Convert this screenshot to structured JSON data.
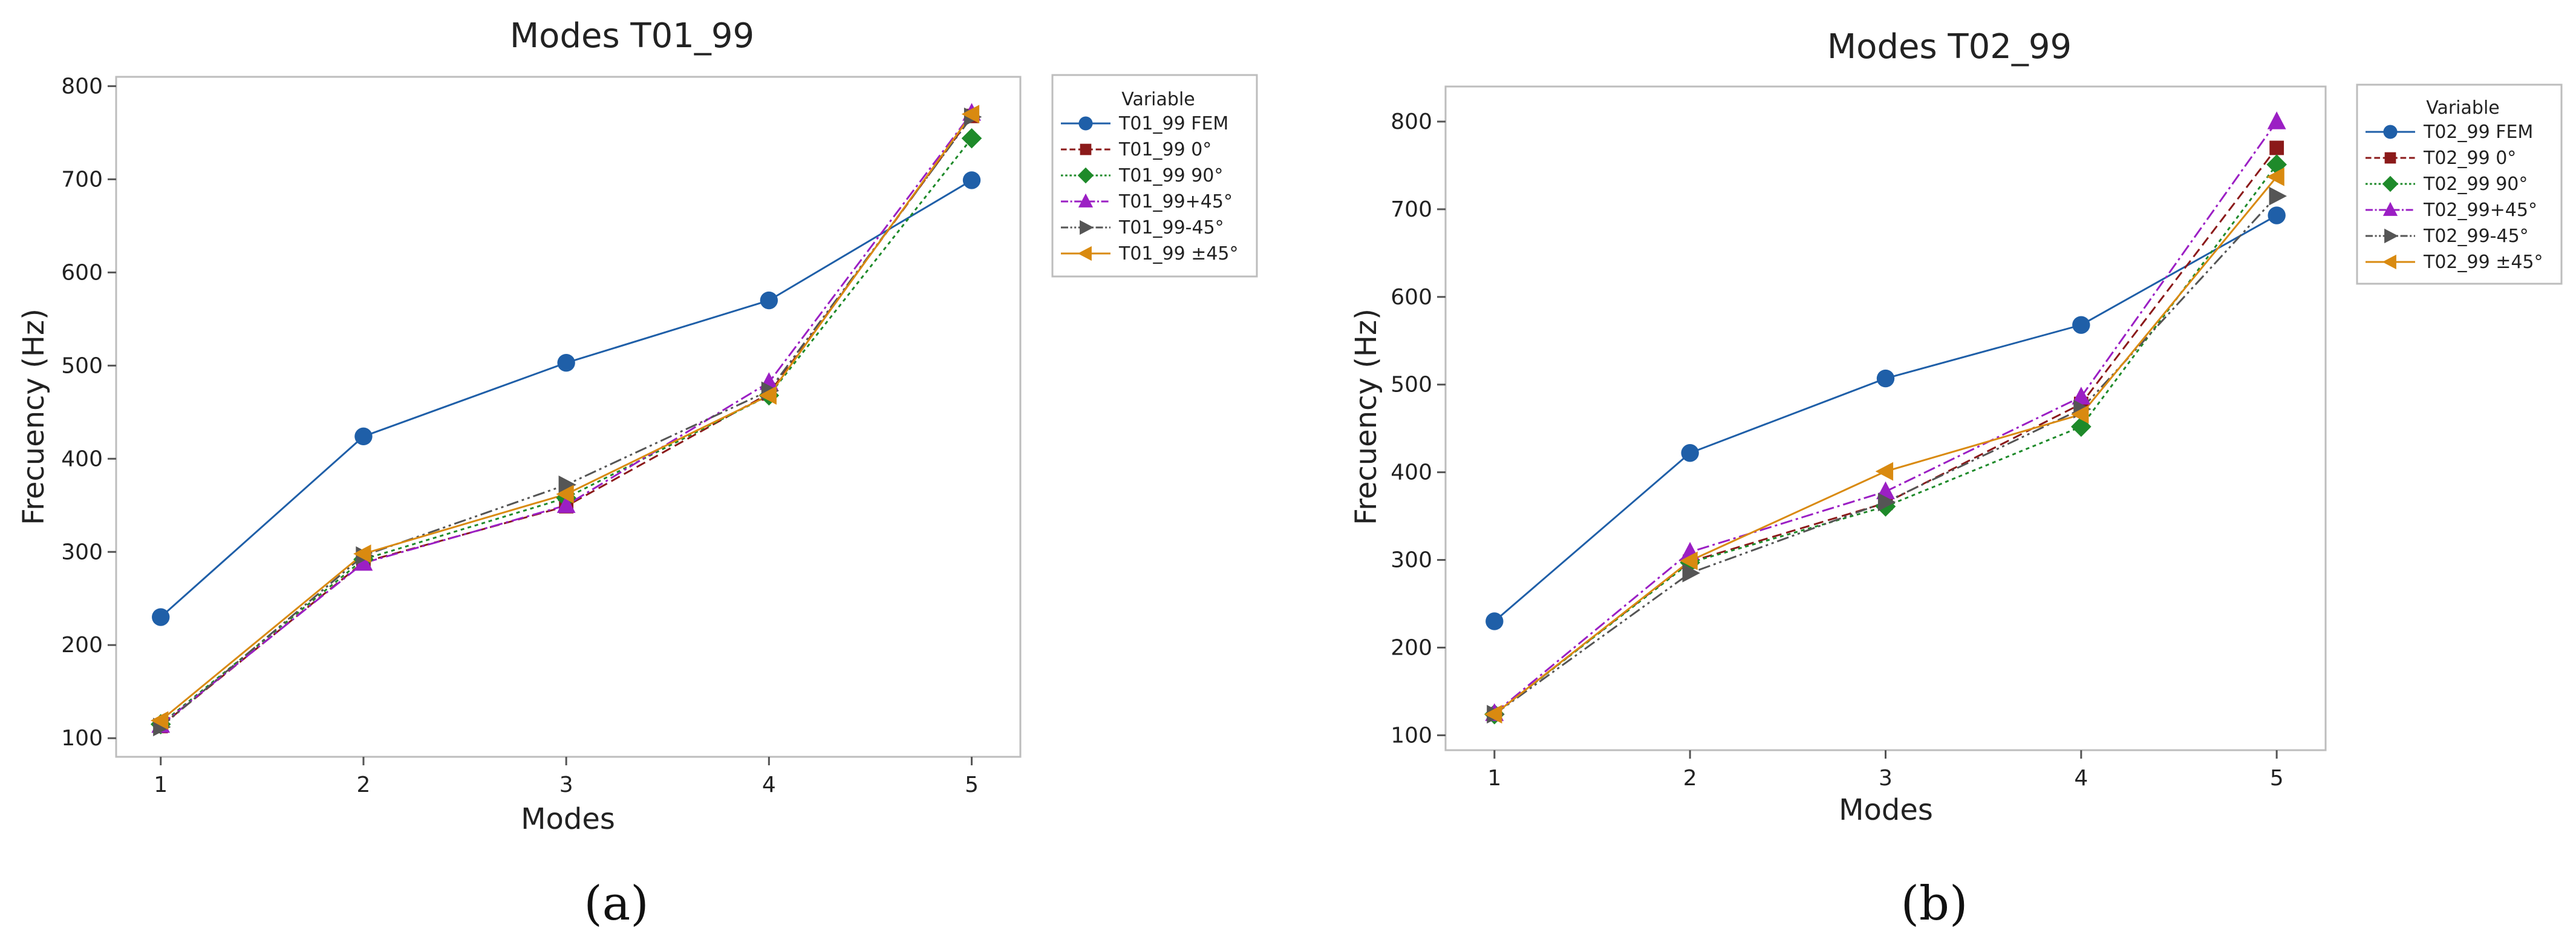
{
  "colors": {
    "FEM": "#1f5fa8",
    "deg0": "#8b1a1a",
    "deg90": "#1e8a2a",
    "p45": "#9b1fc4",
    "m45": "#555555",
    "pm45": "#d98a10"
  },
  "chart_data": [
    {
      "type": "line",
      "title": "Modes T01_99",
      "xlabel": "Modes",
      "ylabel": "Frecuency (Hz)",
      "caption": "(a)",
      "legend_title": "Variable",
      "x": [
        1,
        2,
        3,
        4,
        5
      ],
      "x_ticks": [
        "1",
        "2",
        "3",
        "4",
        "5"
      ],
      "ylim": [
        80,
        810
      ],
      "y_ticks": [
        "100",
        "200",
        "300",
        "400",
        "500",
        "600",
        "700",
        "800"
      ],
      "y_tick_values": [
        100,
        200,
        300,
        400,
        500,
        600,
        700,
        800
      ],
      "series": [
        {
          "name": "T01_99 FEM",
          "key": "FEM",
          "marker": "circle",
          "dash": "",
          "values": [
            230,
            424,
            503,
            570,
            699
          ]
        },
        {
          "name": "T01_99 0°",
          "key": "deg0",
          "marker": "square",
          "dash": "16 8",
          "values": [
            113,
            289,
            349,
            470,
            768
          ]
        },
        {
          "name": "T01_99 90°",
          "key": "deg90",
          "marker": "diamond",
          "dash": "6 6",
          "values": [
            115,
            292,
            358,
            468,
            744
          ]
        },
        {
          "name": "T01_99+45°",
          "key": "p45",
          "marker": "triangle-up",
          "dash": "20 6 4 6",
          "values": [
            114,
            288,
            350,
            482,
            771
          ]
        },
        {
          "name": "T01_99-45°",
          "key": "m45",
          "marker": "triangle-right",
          "dash": "20 6 4 6 4 6",
          "values": [
            112,
            296,
            372,
            473,
            767
          ]
        },
        {
          "name": "T01_99 ±45°",
          "key": "pm45",
          "marker": "triangle-left",
          "dash": "",
          "values": [
            119,
            298,
            362,
            468,
            770
          ]
        }
      ]
    },
    {
      "type": "line",
      "title": "Modes T02_99",
      "xlabel": "Modes",
      "ylabel": "Frecuency (Hz)",
      "caption": "(b)",
      "legend_title": "Variable",
      "x": [
        1,
        2,
        3,
        4,
        5
      ],
      "x_ticks": [
        "1",
        "2",
        "3",
        "4",
        "5"
      ],
      "ylim": [
        83,
        840
      ],
      "y_ticks": [
        "100",
        "200",
        "300",
        "400",
        "500",
        "600",
        "700",
        "800"
      ],
      "y_tick_values": [
        100,
        200,
        300,
        400,
        500,
        600,
        700,
        800
      ],
      "series": [
        {
          "name": "T02_99 FEM",
          "key": "FEM",
          "marker": "circle",
          "dash": "",
          "values": [
            230,
            422,
            507,
            568,
            693
          ]
        },
        {
          "name": "T02_99 0°",
          "key": "deg0",
          "marker": "square",
          "dash": "16 8",
          "values": [
            124,
            298,
            365,
            478,
            770
          ]
        },
        {
          "name": "T02_99 90°",
          "key": "deg90",
          "marker": "diamond",
          "dash": "6 6",
          "values": [
            124,
            297,
            361,
            452,
            751
          ]
        },
        {
          "name": "T02_99+45°",
          "key": "p45",
          "marker": "triangle-up",
          "dash": "20 6 4 6",
          "values": [
            125,
            309,
            378,
            486,
            800
          ]
        },
        {
          "name": "T02_99-45°",
          "key": "m45",
          "marker": "triangle-right",
          "dash": "20 6 4 6 4 6",
          "values": [
            124,
            285,
            366,
            472,
            715
          ]
        },
        {
          "name": "T02_99 ±45°",
          "key": "pm45",
          "marker": "triangle-left",
          "dash": "",
          "values": [
            124,
            299,
            401,
            466,
            737
          ]
        }
      ]
    }
  ]
}
